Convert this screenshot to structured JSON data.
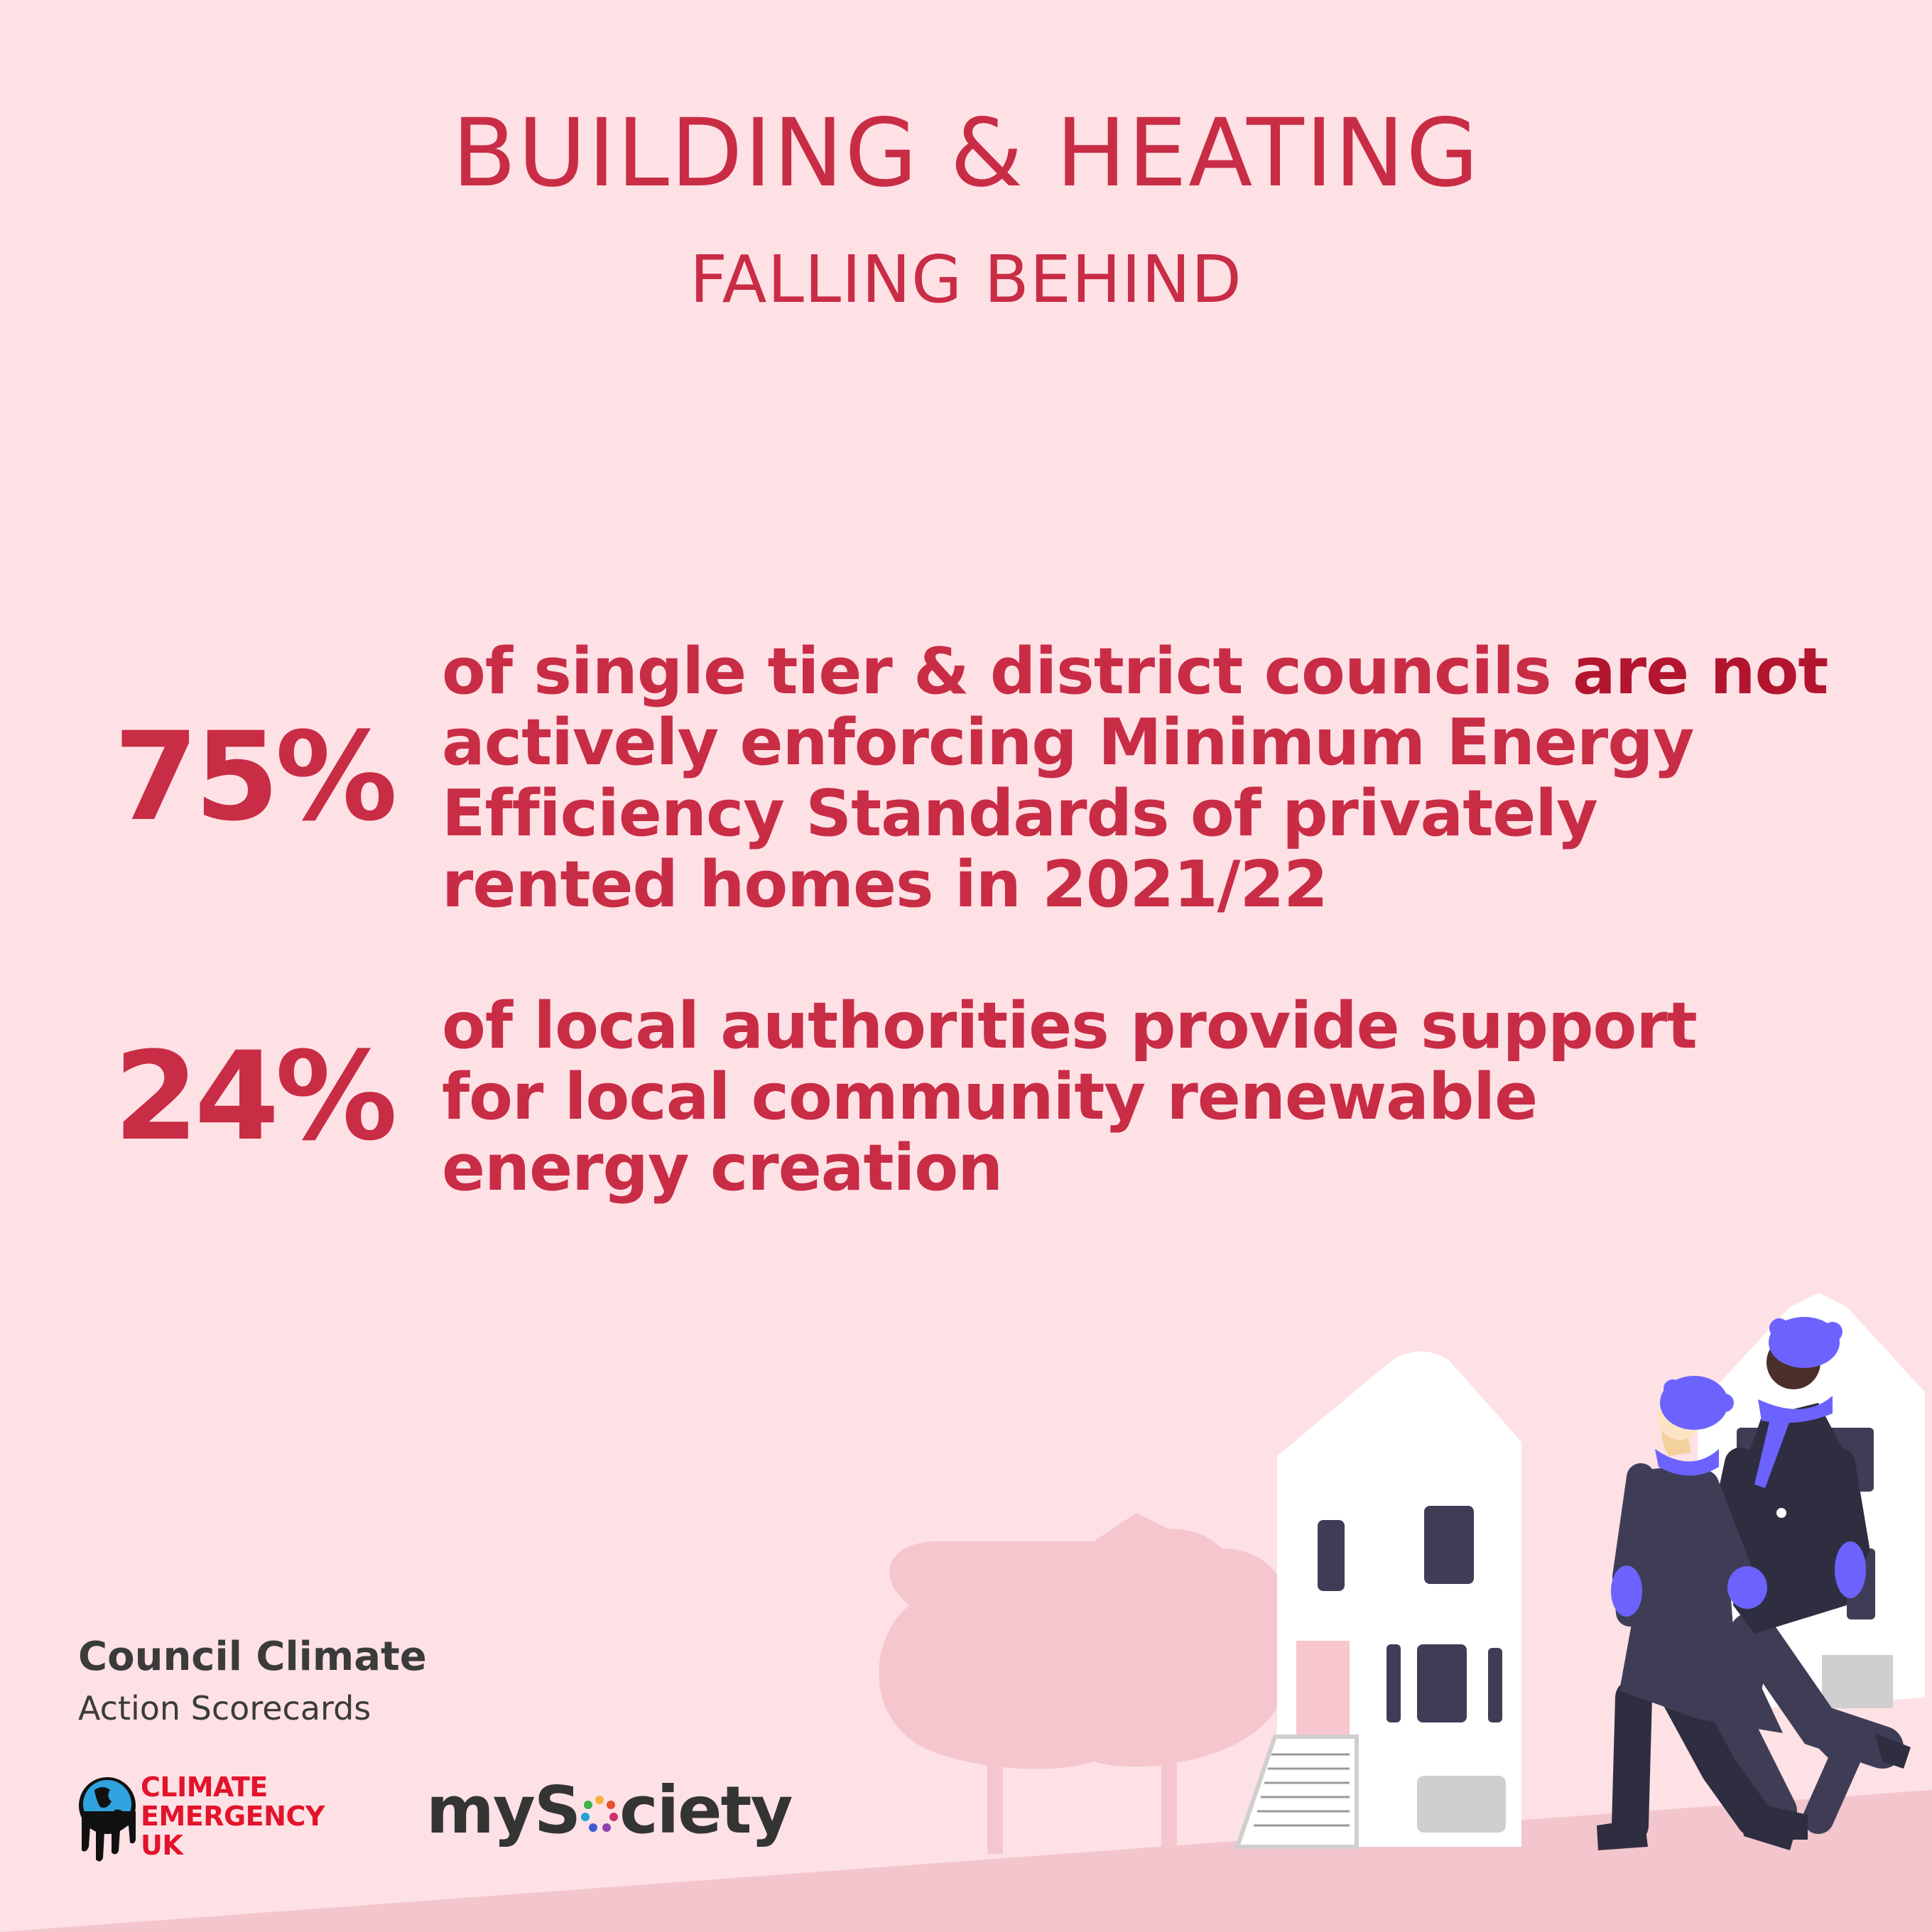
{
  "header": {
    "title": "BUILDING & HEATING",
    "subtitle": "FALLING BEHIND"
  },
  "stats": [
    {
      "value": "75%",
      "text_before": "of single tier & district councils ",
      "text_strong": "are not",
      "text_after": " actively enforcing Minimum Energy Efficiency Standards of privately rented homes in 2021/22"
    },
    {
      "value": "24%",
      "text": "of local authorities provide support for local community renewable energy creation"
    }
  ],
  "branding": {
    "line1": "Council Climate",
    "line2": "Action Scorecards",
    "ceuk_line1": "CLIMATE",
    "ceuk_line2": "EMERGENCY",
    "ceuk_line3": "UK",
    "mysociety_a": "myS",
    "mysociety_b": "ciety"
  },
  "colors": {
    "background": "#fde1e5",
    "accent": "#c92c45",
    "figure_purple": "#6c63ff",
    "figure_dark": "#3f3d56"
  }
}
